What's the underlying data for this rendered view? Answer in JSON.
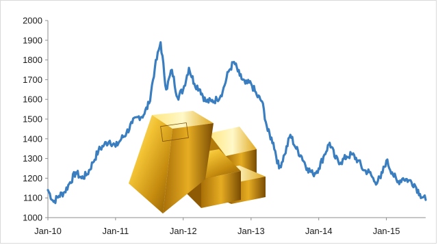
{
  "chart_data": {
    "type": "line",
    "title": "",
    "xlabel": "",
    "ylabel": "",
    "ylim": [
      1000,
      2000
    ],
    "yticks": [
      1000,
      1100,
      1200,
      1300,
      1400,
      1500,
      1600,
      1700,
      1800,
      1900,
      2000
    ],
    "xlim": [
      "2010-01",
      "2015-08"
    ],
    "xticks": [
      "Jan-10",
      "Jan-11",
      "Jan-12",
      "Jan-13",
      "Jan-14",
      "Jan-15"
    ],
    "grid": false,
    "legend": "none",
    "line_color": "#3a7ebf",
    "series": [
      {
        "x": [
          "2010-01-01",
          "2010-02-01",
          "2010-03-01",
          "2010-04-01",
          "2010-05-01",
          "2010-06-01",
          "2010-07-01",
          "2010-08-01",
          "2010-09-01",
          "2010-10-01",
          "2010-11-01",
          "2010-12-01",
          "2011-01-01",
          "2011-02-01",
          "2011-03-01",
          "2011-04-01",
          "2011-05-01",
          "2011-06-01",
          "2011-07-01",
          "2011-08-01",
          "2011-09-01",
          "2011-10-01",
          "2011-11-01",
          "2011-12-01",
          "2012-01-01",
          "2012-02-01",
          "2012-03-01",
          "2012-04-01",
          "2012-05-01",
          "2012-06-01",
          "2012-07-01",
          "2012-08-01",
          "2012-09-01",
          "2012-10-01",
          "2012-11-01",
          "2012-12-01",
          "2013-01-01",
          "2013-02-01",
          "2013-03-01",
          "2013-04-01",
          "2013-05-01",
          "2013-06-01",
          "2013-07-01",
          "2013-08-01",
          "2013-09-01",
          "2013-10-01",
          "2013-11-01",
          "2013-12-01",
          "2014-01-01",
          "2014-02-01",
          "2014-03-01",
          "2014-04-01",
          "2014-05-01",
          "2014-06-01",
          "2014-07-01",
          "2014-08-01",
          "2014-09-01",
          "2014-10-01",
          "2014-11-01",
          "2014-12-01",
          "2015-01-01",
          "2015-02-01",
          "2015-03-01",
          "2015-04-01",
          "2015-05-01",
          "2015-06-01",
          "2015-07-01",
          "2015-08-01"
        ],
        "values": [
          1140,
          1080,
          1110,
          1130,
          1180,
          1230,
          1200,
          1220,
          1280,
          1340,
          1370,
          1390,
          1360,
          1400,
          1430,
          1480,
          1510,
          1520,
          1580,
          1760,
          1890,
          1650,
          1750,
          1610,
          1650,
          1760,
          1680,
          1650,
          1590,
          1590,
          1600,
          1640,
          1740,
          1790,
          1720,
          1680,
          1680,
          1620,
          1590,
          1440,
          1380,
          1250,
          1320,
          1420,
          1350,
          1310,
          1250,
          1220,
          1250,
          1320,
          1380,
          1300,
          1280,
          1310,
          1320,
          1290,
          1240,
          1230,
          1180,
          1200,
          1290,
          1230,
          1180,
          1200,
          1190,
          1170,
          1120,
          1090
        ]
      }
    ]
  }
}
